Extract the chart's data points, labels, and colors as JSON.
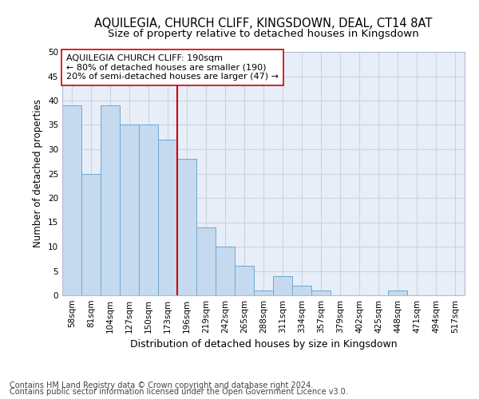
{
  "title1": "AQUILEGIA, CHURCH CLIFF, KINGSDOWN, DEAL, CT14 8AT",
  "title2": "Size of property relative to detached houses in Kingsdown",
  "xlabel": "Distribution of detached houses by size in Kingsdown",
  "ylabel": "Number of detached properties",
  "categories": [
    "58sqm",
    "81sqm",
    "104sqm",
    "127sqm",
    "150sqm",
    "173sqm",
    "196sqm",
    "219sqm",
    "242sqm",
    "265sqm",
    "288sqm",
    "311sqm",
    "334sqm",
    "357sqm",
    "379sqm",
    "402sqm",
    "425sqm",
    "448sqm",
    "471sqm",
    "494sqm",
    "517sqm"
  ],
  "values": [
    39,
    25,
    39,
    35,
    35,
    32,
    28,
    14,
    10,
    6,
    1,
    4,
    2,
    1,
    0,
    0,
    0,
    1,
    0,
    0,
    0
  ],
  "bar_color": "#c5d9ef",
  "bar_edge_color": "#6fa8d0",
  "grid_color": "#c8d4e4",
  "background_color": "#e8eef8",
  "vline_x_index": 6,
  "vline_color": "#cc0000",
  "annotation_text": "AQUILEGIA CHURCH CLIFF: 190sqm\n← 80% of detached houses are smaller (190)\n20% of semi-detached houses are larger (47) →",
  "annotation_box_color": "#ffffff",
  "annotation_box_edge": "#cc0000",
  "ylim": [
    0,
    50
  ],
  "yticks": [
    0,
    5,
    10,
    15,
    20,
    25,
    30,
    35,
    40,
    45,
    50
  ],
  "footer1": "Contains HM Land Registry data © Crown copyright and database right 2024.",
  "footer2": "Contains public sector information licensed under the Open Government Licence v3.0.",
  "title1_fontsize": 10.5,
  "title2_fontsize": 9.5,
  "xlabel_fontsize": 9,
  "ylabel_fontsize": 8.5,
  "tick_fontsize": 7.5,
  "annotation_fontsize": 8,
  "footer_fontsize": 7
}
